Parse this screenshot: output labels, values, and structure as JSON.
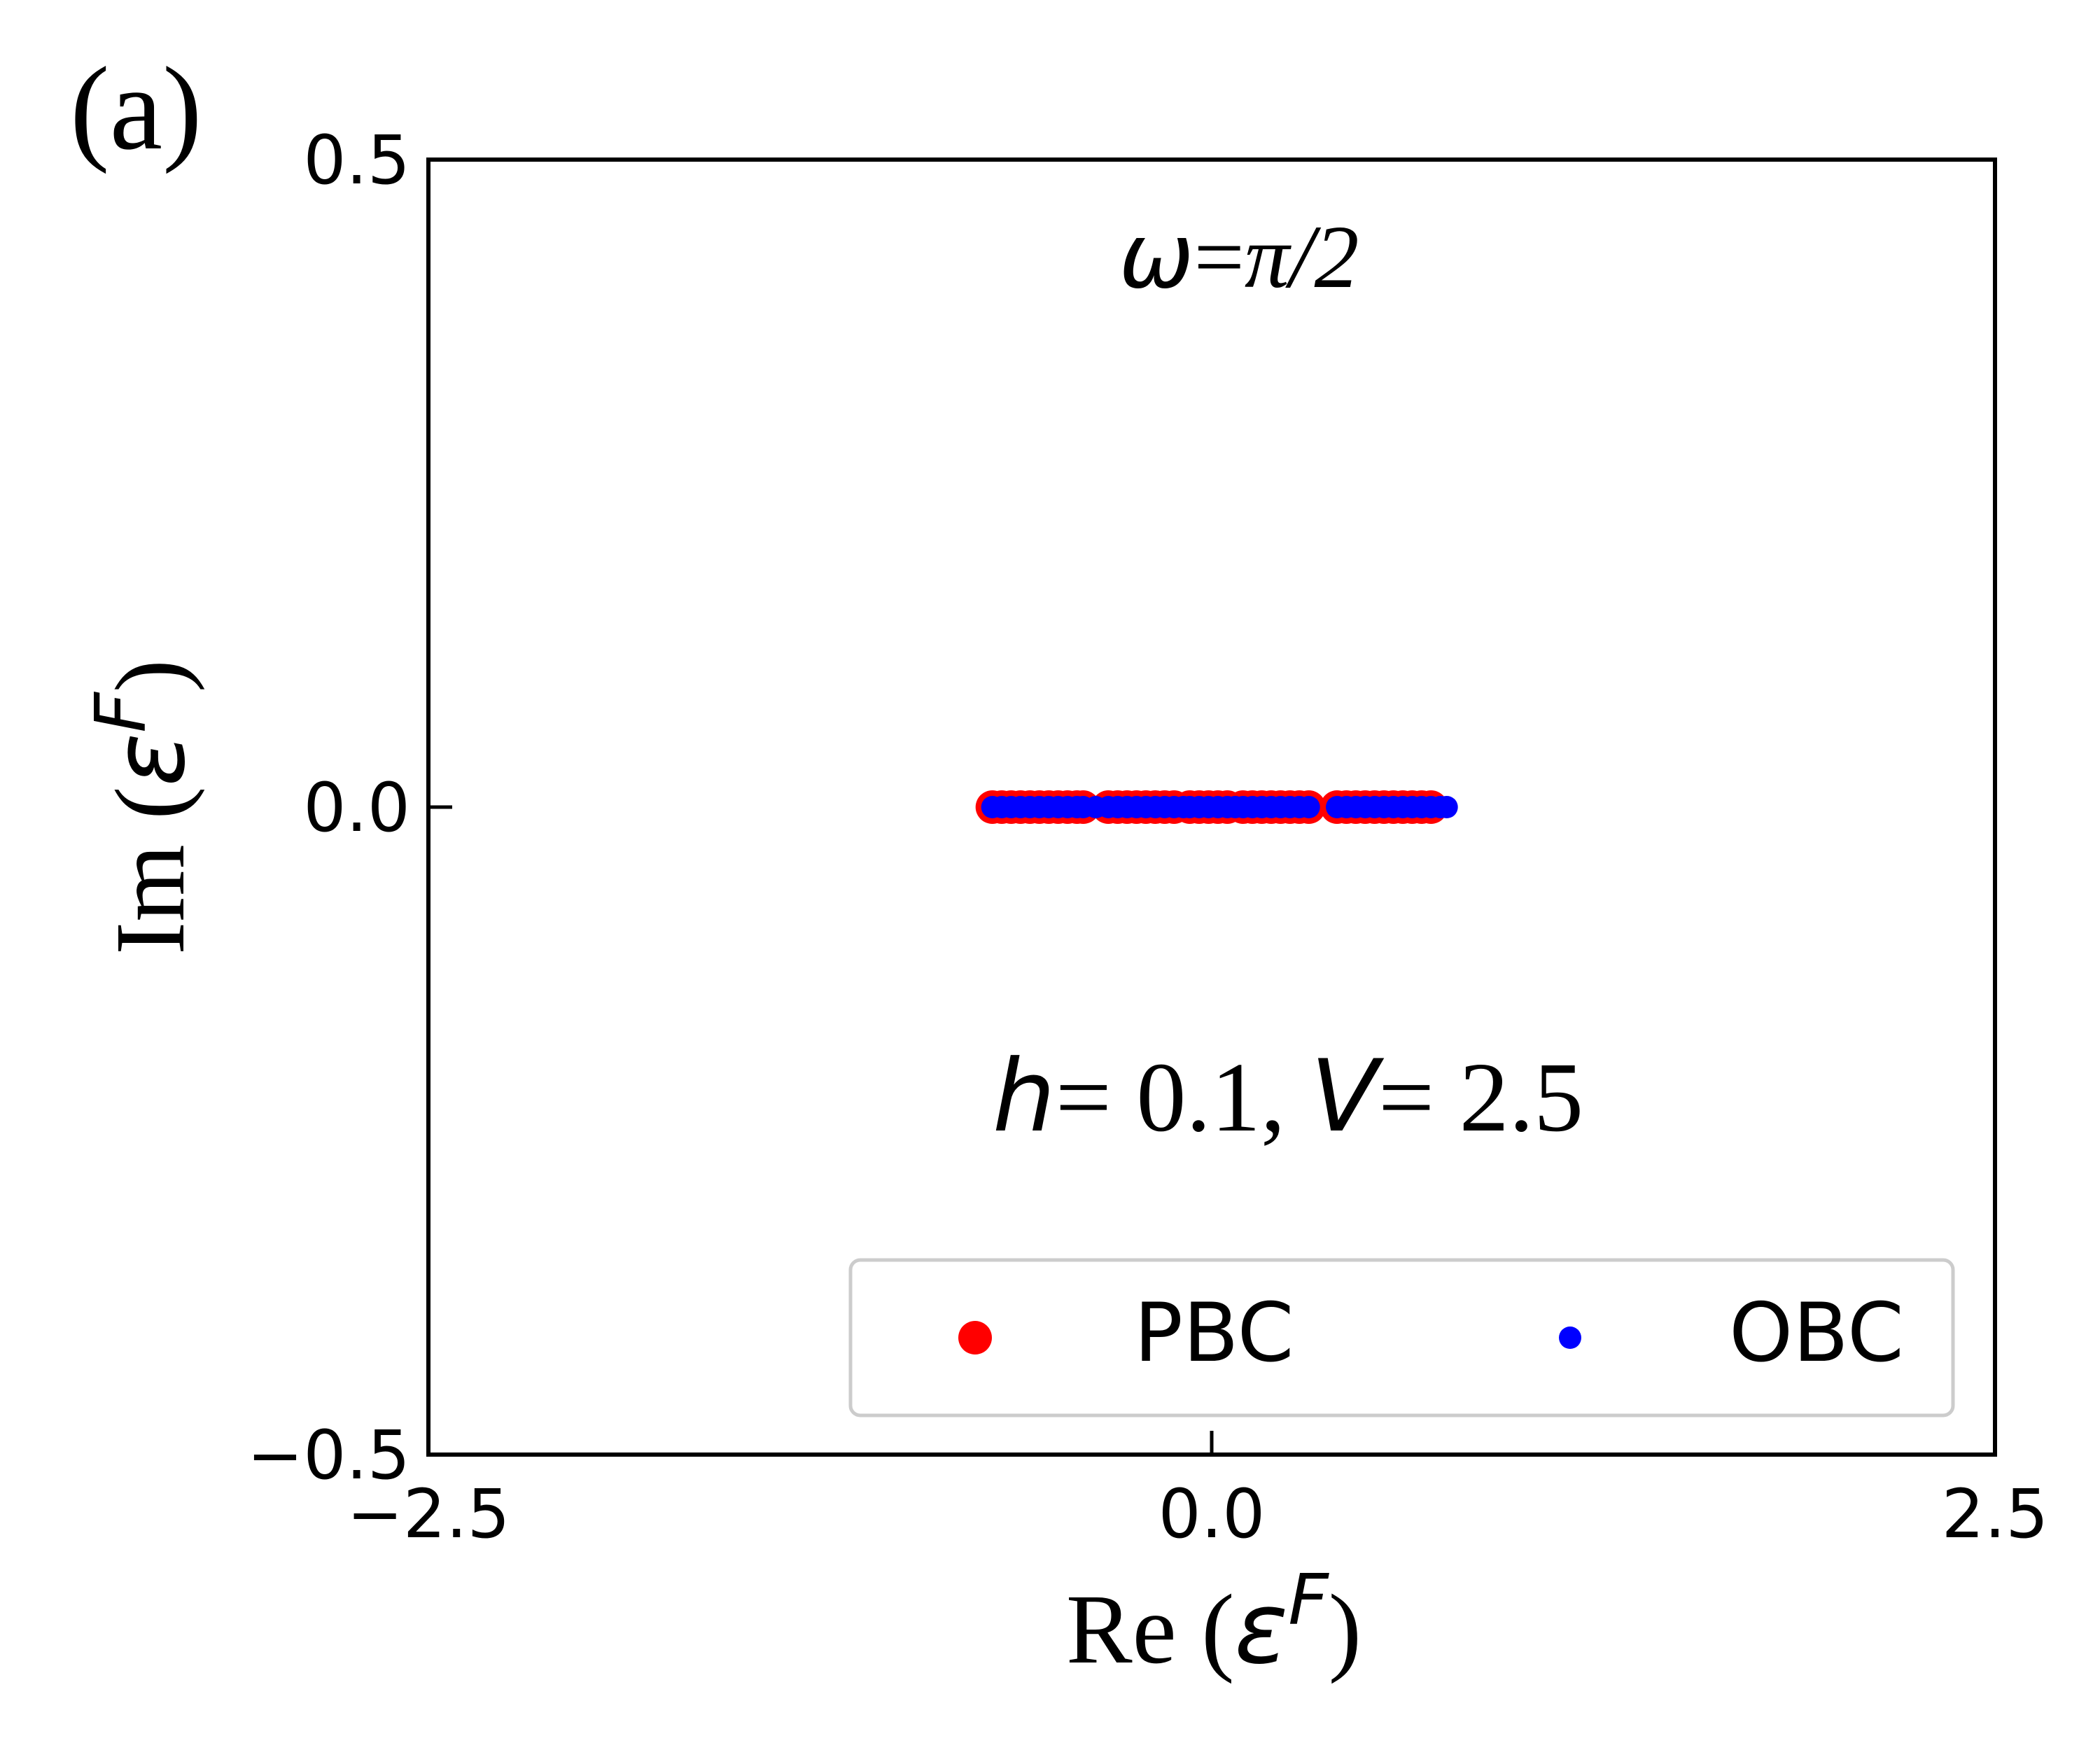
{
  "panel_label": "(a)",
  "chart_data": {
    "type": "scatter",
    "title": "",
    "annotations": {
      "omega": {
        "symbol": "ω",
        "equals": "=",
        "value": "π/2"
      },
      "params": {
        "h_symbol": "h",
        "h_text": "= 0.1,",
        "v_symbol": "V",
        "v_text": "= 2.5"
      }
    },
    "xlabel": {
      "prefix": "Re (",
      "symbol": "ε",
      "superscript": "F",
      "suffix": ")"
    },
    "ylabel": {
      "prefix": "Im (",
      "symbol": "ε",
      "superscript": "F",
      "suffix": ")"
    },
    "xlim": [
      -2.5,
      2.5
    ],
    "ylim": [
      -0.5,
      0.5
    ],
    "xticks": [
      {
        "value": -2.5,
        "label": "−2.5"
      },
      {
        "value": 0.0,
        "label": "0.0"
      },
      {
        "value": 2.5,
        "label": "2.5"
      }
    ],
    "yticks": [
      {
        "value": -0.5,
        "label": "−0.5"
      },
      {
        "value": 0.0,
        "label": "0.0"
      },
      {
        "value": 0.5,
        "label": "0.5"
      }
    ],
    "grid": false,
    "legend": {
      "position": "lower-right",
      "columns": 2
    },
    "series": [
      {
        "name": "PBC",
        "color": "#ff0000",
        "marker": "large-circle",
        "points": [
          [
            -0.7,
            0
          ],
          [
            -0.67,
            0
          ],
          [
            -0.64,
            0
          ],
          [
            -0.61,
            0
          ],
          [
            -0.58,
            0
          ],
          [
            -0.55,
            0
          ],
          [
            -0.52,
            0
          ],
          [
            -0.49,
            0
          ],
          [
            -0.46,
            0
          ],
          [
            -0.43,
            0
          ],
          [
            -0.41,
            0
          ],
          [
            -0.33,
            0
          ],
          [
            -0.3,
            0
          ],
          [
            -0.27,
            0
          ],
          [
            -0.24,
            0
          ],
          [
            -0.21,
            0
          ],
          [
            -0.18,
            0
          ],
          [
            -0.15,
            0
          ],
          [
            -0.12,
            0
          ],
          [
            -0.07,
            0
          ],
          [
            -0.04,
            0
          ],
          [
            -0.01,
            0
          ],
          [
            0.02,
            0
          ],
          [
            0.05,
            0
          ],
          [
            0.1,
            0
          ],
          [
            0.13,
            0
          ],
          [
            0.16,
            0
          ],
          [
            0.19,
            0
          ],
          [
            0.22,
            0
          ],
          [
            0.25,
            0
          ],
          [
            0.28,
            0
          ],
          [
            0.31,
            0
          ],
          [
            0.4,
            0
          ],
          [
            0.43,
            0
          ],
          [
            0.46,
            0
          ],
          [
            0.49,
            0
          ],
          [
            0.52,
            0
          ],
          [
            0.55,
            0
          ],
          [
            0.58,
            0
          ],
          [
            0.61,
            0
          ],
          [
            0.64,
            0
          ],
          [
            0.67,
            0
          ],
          [
            0.7,
            0
          ]
        ]
      },
      {
        "name": "OBC",
        "color": "#0000ff",
        "marker": "small-circle",
        "points": [
          [
            -0.7,
            0
          ],
          [
            -0.67,
            0
          ],
          [
            -0.64,
            0
          ],
          [
            -0.61,
            0
          ],
          [
            -0.58,
            0
          ],
          [
            -0.55,
            0
          ],
          [
            -0.52,
            0
          ],
          [
            -0.49,
            0
          ],
          [
            -0.46,
            0
          ],
          [
            -0.43,
            0
          ],
          [
            -0.41,
            0
          ],
          [
            -0.37,
            0
          ],
          [
            -0.33,
            0
          ],
          [
            -0.3,
            0
          ],
          [
            -0.27,
            0
          ],
          [
            -0.24,
            0
          ],
          [
            -0.21,
            0
          ],
          [
            -0.18,
            0
          ],
          [
            -0.15,
            0
          ],
          [
            -0.12,
            0
          ],
          [
            -0.09,
            0
          ],
          [
            -0.07,
            0
          ],
          [
            -0.04,
            0
          ],
          [
            -0.01,
            0
          ],
          [
            0.02,
            0
          ],
          [
            0.05,
            0
          ],
          [
            0.075,
            0
          ],
          [
            0.1,
            0
          ],
          [
            0.13,
            0
          ],
          [
            0.16,
            0
          ],
          [
            0.19,
            0
          ],
          [
            0.22,
            0
          ],
          [
            0.25,
            0
          ],
          [
            0.28,
            0
          ],
          [
            0.31,
            0
          ],
          [
            0.4,
            0
          ],
          [
            0.43,
            0
          ],
          [
            0.46,
            0
          ],
          [
            0.49,
            0
          ],
          [
            0.52,
            0
          ],
          [
            0.55,
            0
          ],
          [
            0.58,
            0
          ],
          [
            0.61,
            0
          ],
          [
            0.64,
            0
          ],
          [
            0.67,
            0
          ],
          [
            0.7,
            0
          ],
          [
            0.73,
            0
          ],
          [
            0.75,
            0
          ]
        ]
      }
    ]
  }
}
